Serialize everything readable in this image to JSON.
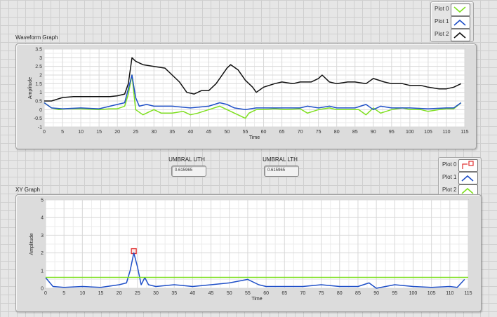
{
  "top_legend": {
    "items": [
      {
        "label": "Plot 0",
        "color": "#7fe020"
      },
      {
        "label": "Plot 1",
        "color": "#2050c8"
      },
      {
        "label": "Plot 2",
        "color": "#111111"
      }
    ]
  },
  "bottom_legend": {
    "items": [
      {
        "label": "Plot 0",
        "color": "#e03030"
      },
      {
        "label": "Plot 1",
        "color": "#2050c8"
      },
      {
        "label": "Plot 2",
        "color": "#7fe020"
      }
    ]
  },
  "indicators": {
    "uth": {
      "label": "UMBRAL UTH",
      "value": "0.615965"
    },
    "lth": {
      "label": "UMBRAL LTH",
      "value": "0.615965"
    }
  },
  "chart_data": [
    {
      "type": "line",
      "title": "Waveform Graph",
      "xlabel": "Time",
      "ylabel": "Amplitude",
      "xlim": [
        0,
        115
      ],
      "ylim": [
        -1,
        3.5
      ],
      "xticks": [
        0,
        5,
        10,
        15,
        20,
        25,
        30,
        35,
        40,
        45,
        50,
        55,
        60,
        65,
        70,
        75,
        80,
        85,
        90,
        95,
        100,
        105,
        110,
        115
      ],
      "yticks": [
        -1,
        -0.5,
        0,
        0.5,
        1,
        1.5,
        2,
        2.5,
        3,
        3.5
      ],
      "yticklabels": [
        "-1",
        "-0.5",
        "0",
        "0.5",
        "1",
        "1.5",
        "2",
        "2.5",
        "3",
        "3.5"
      ],
      "grid": true,
      "series": [
        {
          "name": "Plot 0",
          "color": "#7fe020",
          "x": [
            0,
            2,
            4,
            6,
            10,
            15,
            18,
            20,
            22,
            23,
            24,
            25,
            27,
            30,
            32,
            35,
            38,
            40,
            42,
            45,
            48,
            50,
            52,
            54,
            55,
            56,
            58,
            60,
            63,
            66,
            70,
            72,
            75,
            78,
            80,
            83,
            86,
            88,
            90,
            92,
            95,
            98,
            100,
            103,
            105,
            108,
            110,
            112,
            114
          ],
          "y": [
            0.4,
            0.1,
            0.0,
            0.05,
            0.05,
            0.0,
            0.05,
            0.05,
            0.2,
            0.9,
            2.0,
            0.0,
            -0.3,
            0.0,
            -0.2,
            -0.2,
            -0.1,
            -0.3,
            -0.2,
            0.0,
            0.2,
            0.0,
            -0.2,
            -0.4,
            -0.5,
            -0.2,
            0.0,
            0.0,
            0.05,
            0.0,
            0.05,
            -0.2,
            0.0,
            0.1,
            0.0,
            0.0,
            0.0,
            -0.3,
            0.1,
            -0.2,
            0.0,
            0.1,
            0.0,
            0.0,
            -0.1,
            0.0,
            0.05,
            0.05,
            0.4
          ]
        },
        {
          "name": "Plot 1",
          "color": "#2050c8",
          "x": [
            0,
            2,
            5,
            10,
            15,
            20,
            22,
            23,
            24,
            25,
            26,
            28,
            30,
            35,
            40,
            45,
            48,
            50,
            52,
            55,
            58,
            60,
            65,
            70,
            72,
            75,
            78,
            80,
            85,
            88,
            90,
            92,
            95,
            100,
            105,
            110,
            112,
            114
          ],
          "y": [
            0.4,
            0.1,
            0.05,
            0.1,
            0.05,
            0.3,
            0.4,
            1.2,
            2.0,
            0.7,
            0.2,
            0.3,
            0.2,
            0.2,
            0.1,
            0.2,
            0.4,
            0.3,
            0.1,
            0.0,
            0.1,
            0.1,
            0.1,
            0.1,
            0.2,
            0.1,
            0.2,
            0.1,
            0.1,
            0.3,
            0.0,
            0.2,
            0.1,
            0.1,
            0.05,
            0.1,
            0.1,
            0.4
          ]
        },
        {
          "name": "Plot 2",
          "color": "#111111",
          "x": [
            0,
            2,
            5,
            8,
            10,
            15,
            18,
            20,
            22,
            23,
            24,
            25,
            27,
            30,
            33,
            35,
            37,
            39,
            41,
            43,
            45,
            47,
            50,
            51,
            53,
            55,
            57,
            58,
            60,
            63,
            65,
            68,
            70,
            73,
            75,
            76,
            78,
            80,
            83,
            85,
            88,
            90,
            93,
            95,
            98,
            100,
            103,
            105,
            108,
            110,
            112,
            113,
            114
          ],
          "y": [
            0.5,
            0.5,
            0.7,
            0.75,
            0.75,
            0.75,
            0.75,
            0.8,
            0.9,
            1.5,
            3.0,
            2.8,
            2.6,
            2.5,
            2.4,
            2.0,
            1.6,
            1.0,
            0.9,
            1.1,
            1.1,
            1.5,
            2.4,
            2.6,
            2.3,
            1.7,
            1.3,
            1.0,
            1.3,
            1.5,
            1.6,
            1.5,
            1.6,
            1.6,
            1.8,
            2.0,
            1.6,
            1.5,
            1.6,
            1.6,
            1.5,
            1.8,
            1.6,
            1.5,
            1.5,
            1.4,
            1.4,
            1.3,
            1.2,
            1.2,
            1.3,
            1.4,
            1.5
          ]
        }
      ]
    },
    {
      "type": "line",
      "title": "XY Graph",
      "xlabel": "Time",
      "ylabel": "Amplitude",
      "xlim": [
        0,
        115
      ],
      "ylim": [
        0,
        5
      ],
      "xticks": [
        0,
        5,
        10,
        15,
        20,
        25,
        30,
        35,
        40,
        45,
        50,
        55,
        60,
        65,
        70,
        75,
        80,
        85,
        90,
        95,
        100,
        105,
        110,
        115
      ],
      "yticks": [
        0,
        1,
        2,
        3,
        4,
        5
      ],
      "yticklabels": [
        "0",
        "1",
        "2",
        "3",
        "4",
        "5"
      ],
      "grid": true,
      "series": [
        {
          "name": "Plot 0",
          "color": "#e03030",
          "x": [
            24
          ],
          "y": [
            2.1
          ],
          "marker": "square"
        },
        {
          "name": "Plot 1",
          "color": "#2050c8",
          "x": [
            0,
            2,
            5,
            10,
            15,
            20,
            22,
            23,
            24,
            25,
            26,
            27,
            28,
            30,
            35,
            40,
            45,
            50,
            55,
            58,
            60,
            65,
            70,
            75,
            80,
            85,
            88,
            90,
            95,
            100,
            105,
            110,
            112,
            114
          ],
          "y": [
            0.6,
            0.1,
            0.05,
            0.1,
            0.05,
            0.2,
            0.3,
            1.0,
            2.0,
            1.2,
            0.2,
            0.6,
            0.2,
            0.1,
            0.2,
            0.1,
            0.2,
            0.3,
            0.5,
            0.2,
            0.1,
            0.1,
            0.1,
            0.2,
            0.1,
            0.1,
            0.3,
            0.0,
            0.2,
            0.1,
            0.05,
            0.1,
            0.05,
            0.5
          ]
        },
        {
          "name": "Plot 2",
          "color": "#7fe020",
          "x": [
            0,
            115
          ],
          "y": [
            0.615965,
            0.615965
          ]
        }
      ]
    }
  ]
}
